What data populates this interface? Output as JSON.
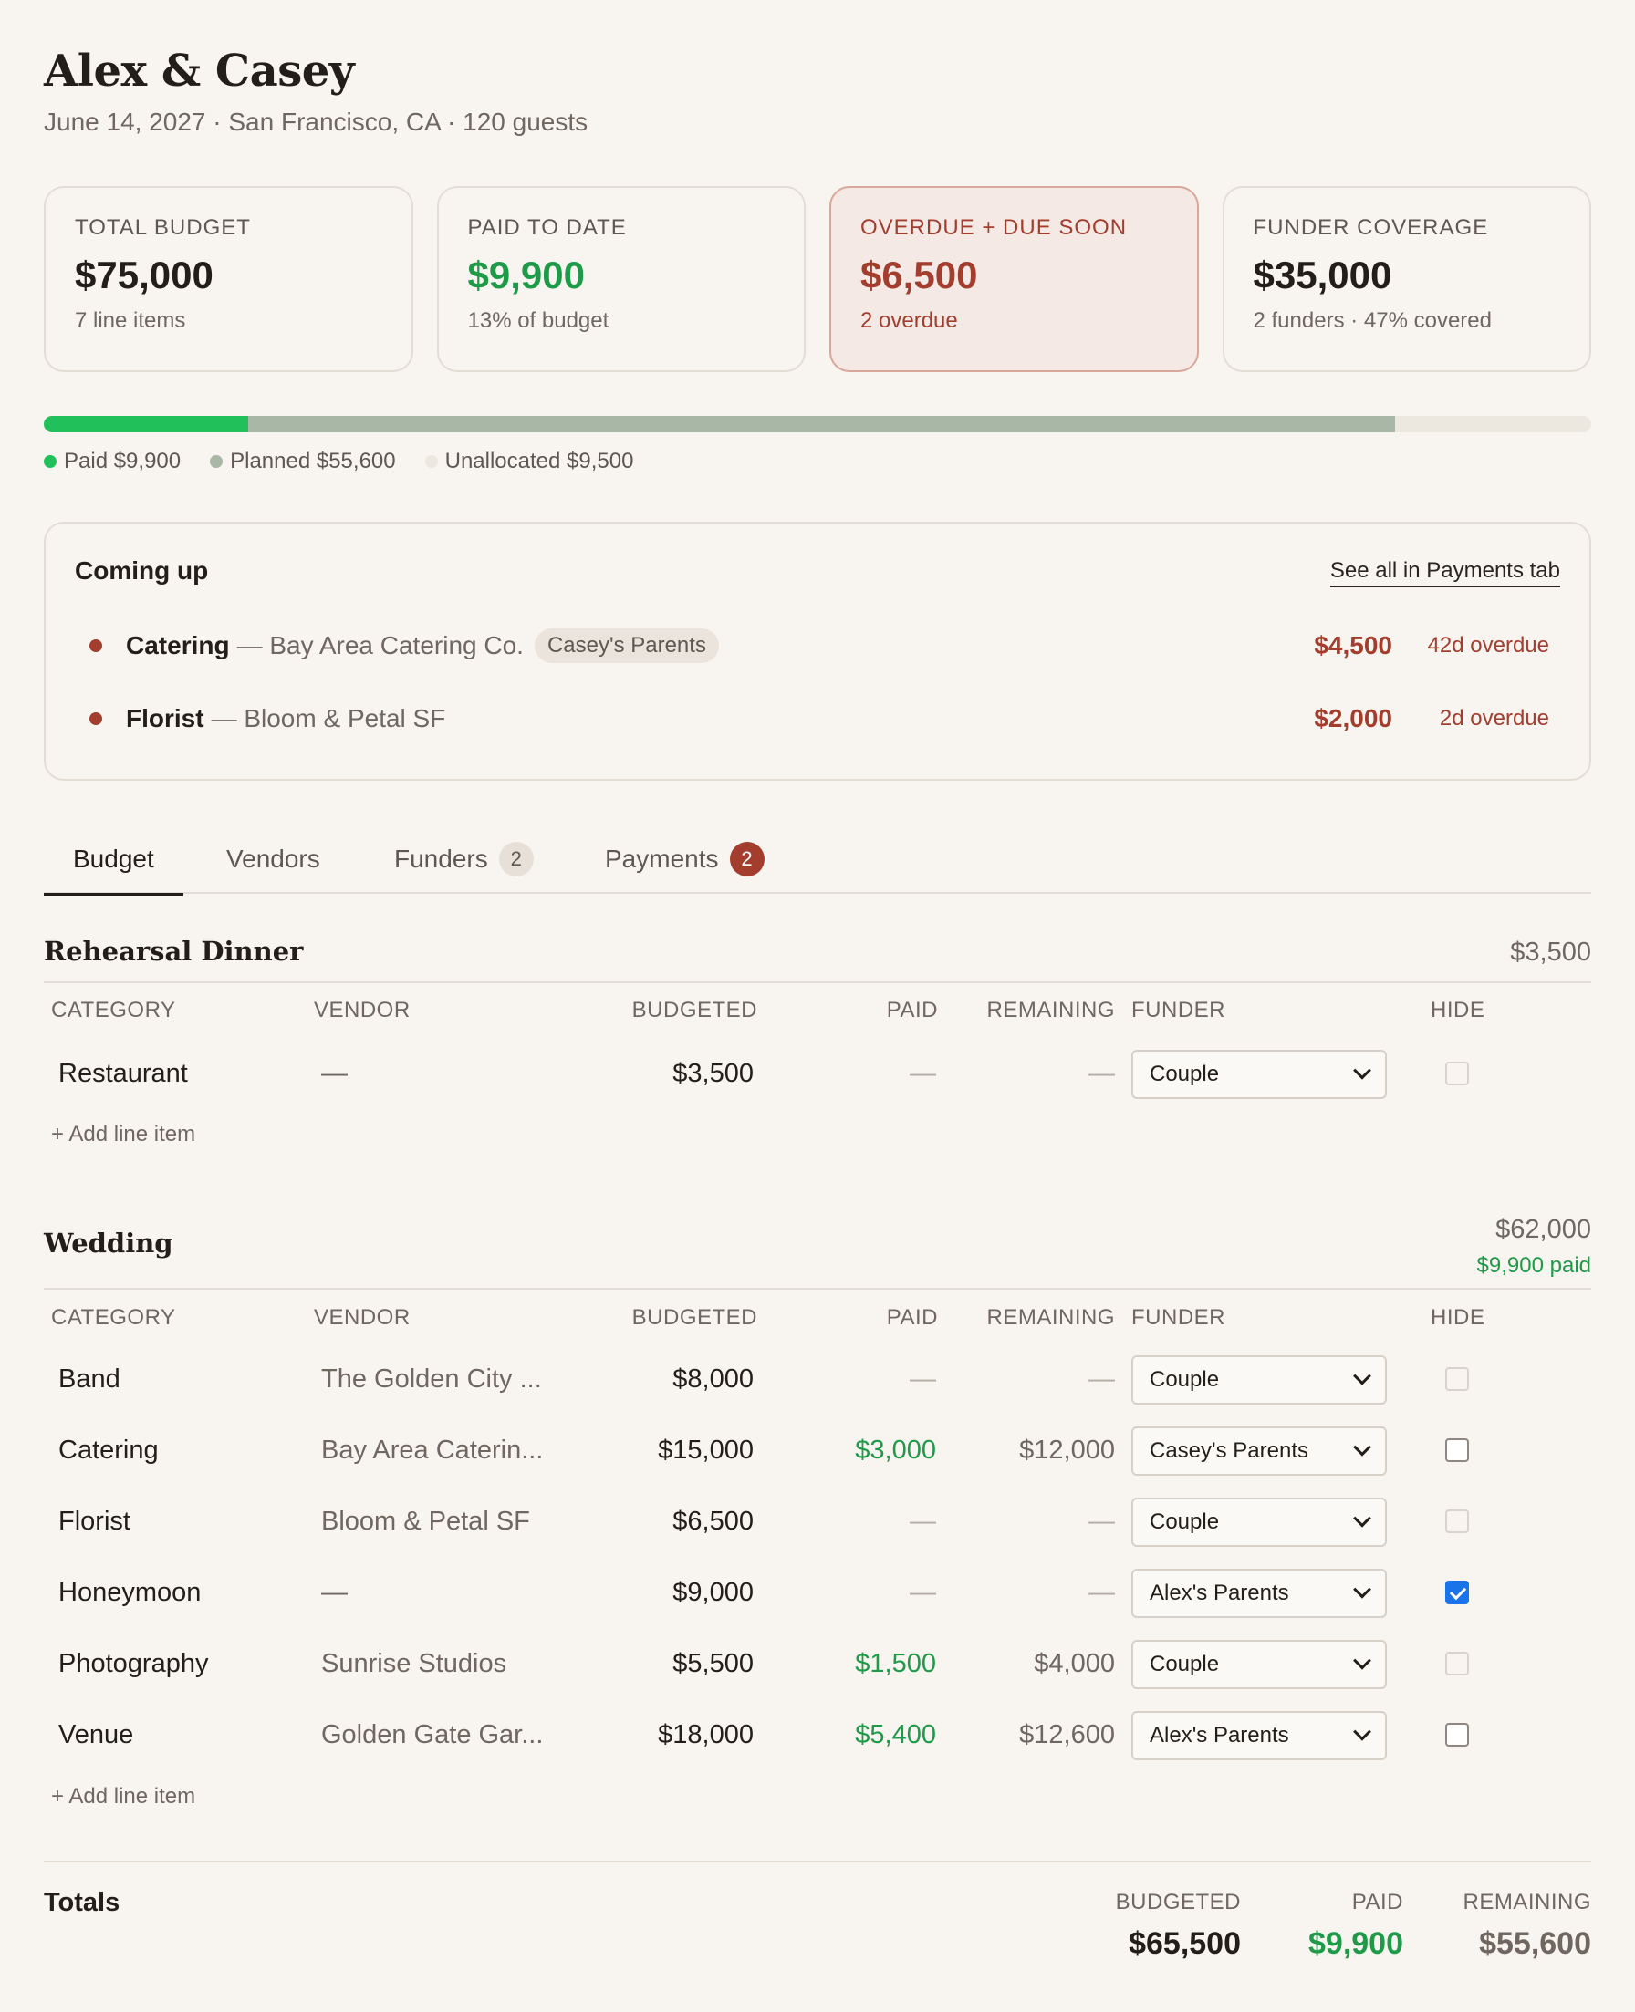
{
  "header": {
    "title": "Alex & Casey",
    "subtitle": "June 14, 2027 · San Francisco, CA · 120 guests"
  },
  "cards": [
    {
      "label": "TOTAL BUDGET",
      "value": "$75,000",
      "sub": "7 line items"
    },
    {
      "label": "PAID TO DATE",
      "value": "$9,900",
      "sub": "13% of budget"
    },
    {
      "label": "OVERDUE + DUE SOON",
      "value": "$6,500",
      "sub": "2 overdue"
    },
    {
      "label": "FUNDER COVERAGE",
      "value": "$35,000",
      "sub": "2 funders · 47% covered"
    }
  ],
  "progress": {
    "paid_fraction": 0.132,
    "planned_fraction": 0.741,
    "colors": {
      "paid": "#22c05a",
      "planned": "#a9b7a6",
      "unallocated": "#ece7df"
    },
    "legend": {
      "paid": "Paid $9,900",
      "planned": "Planned $55,600",
      "unallocated": "Unallocated $9,500"
    }
  },
  "coming_up": {
    "title": "Coming up",
    "link": "See all in Payments tab",
    "items": [
      {
        "category": "Catering",
        "vendor": "— Bay Area Catering Co.",
        "tag": "Casey's Parents",
        "amount": "$4,500",
        "status": "42d overdue"
      },
      {
        "category": "Florist",
        "vendor": "— Bloom & Petal SF",
        "amount": "$2,000",
        "status": "2d overdue"
      }
    ]
  },
  "tabs": [
    {
      "label": "Budget",
      "active": true
    },
    {
      "label": "Vendors"
    },
    {
      "label": "Funders",
      "badge": "2"
    },
    {
      "label": "Payments",
      "badge": "2"
    }
  ],
  "table_headers": {
    "category": "CATEGORY",
    "vendor": "VENDOR",
    "budgeted": "BUDGETED",
    "paid": "PAID",
    "remaining": "REMAINING",
    "funder": "FUNDER",
    "hide": "HIDE"
  },
  "add_line_label": "+ Add line item",
  "sections": {
    "rehearsal": {
      "title": "Rehearsal Dinner",
      "total": "$3,500",
      "rows": [
        {
          "category": "Restaurant",
          "vendor": "—",
          "budgeted": "$3,500",
          "paid": "—",
          "remaining": "—",
          "funder": "Couple",
          "hidden": false
        }
      ]
    },
    "wedding": {
      "title": "Wedding",
      "total": "$62,000",
      "paid": "$9,900 paid",
      "rows": [
        {
          "category": "Band",
          "vendor": "The Golden City ...",
          "budgeted": "$8,000",
          "paid": "—",
          "remaining": "—",
          "funder": "Couple",
          "hidden": false
        },
        {
          "category": "Catering",
          "vendor": "Bay Area Caterin...",
          "budgeted": "$15,000",
          "paid": "$3,000",
          "remaining": "$12,000",
          "funder": "Casey's Parents",
          "hidden": false
        },
        {
          "category": "Florist",
          "vendor": "Bloom & Petal SF",
          "budgeted": "$6,500",
          "paid": "—",
          "remaining": "—",
          "funder": "Couple",
          "hidden": false
        },
        {
          "category": "Honeymoon",
          "vendor": "—",
          "budgeted": "$9,000",
          "paid": "—",
          "remaining": "—",
          "funder": "Alex's Parents",
          "hidden": true
        },
        {
          "category": "Photography",
          "vendor": "Sunrise Studios",
          "budgeted": "$5,500",
          "paid": "$1,500",
          "remaining": "$4,000",
          "funder": "Couple",
          "hidden": false
        },
        {
          "category": "Venue",
          "vendor": "Golden Gate Gar...",
          "budgeted": "$18,000",
          "paid": "$5,400",
          "remaining": "$12,600",
          "funder": "Alex's Parents",
          "hidden": false
        }
      ]
    }
  },
  "totals": {
    "label": "Totals",
    "budgeted_label": "BUDGETED",
    "budgeted": "$65,500",
    "paid_label": "PAID",
    "paid": "$9,900",
    "remaining_label": "REMAINING",
    "remaining": "$55,600"
  }
}
